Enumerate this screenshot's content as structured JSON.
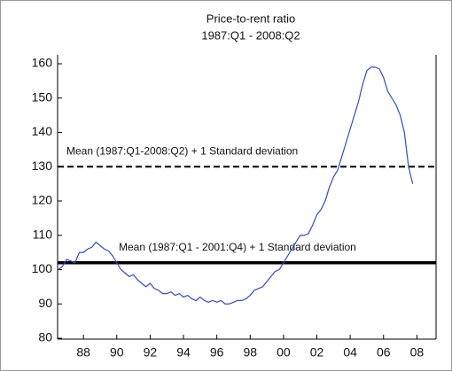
{
  "chart_data": {
    "type": "line",
    "title": "Price-to-rent ratio",
    "subtitle": "1987:Q1 - 2008:Q2",
    "x": [
      1987,
      1987.25,
      1987.5,
      1987.75,
      1988,
      1988.25,
      1988.5,
      1988.75,
      1989,
      1989.25,
      1989.5,
      1989.75,
      1990,
      1990.25,
      1990.5,
      1990.75,
      1991,
      1991.25,
      1991.5,
      1991.75,
      1992,
      1992.25,
      1992.5,
      1992.75,
      1993,
      1993.25,
      1993.5,
      1993.75,
      1994,
      1994.25,
      1994.5,
      1994.75,
      1995,
      1995.25,
      1995.5,
      1995.75,
      1996,
      1996.25,
      1996.5,
      1996.75,
      1997,
      1997.25,
      1997.5,
      1997.75,
      1998,
      1998.25,
      1998.5,
      1998.75,
      1999,
      1999.25,
      1999.5,
      1999.75,
      2000,
      2000.25,
      2000.5,
      2000.75,
      2001,
      2001.25,
      2001.5,
      2001.75,
      2002,
      2002.25,
      2002.5,
      2002.75,
      2003,
      2003.25,
      2003.5,
      2003.75,
      2004,
      2004.25,
      2004.5,
      2004.75,
      2005,
      2005.25,
      2005.5,
      2005.75,
      2006,
      2006.25,
      2006.5,
      2006.75,
      2007,
      2007.25,
      2007.5,
      2007.75,
      2008,
      2008.25
    ],
    "series": [
      {
        "color": "#3347d6",
        "values": [
          100,
          101,
          103,
          102.5,
          102,
          105,
          105,
          106,
          106.5,
          108,
          107,
          106,
          105.5,
          104,
          102,
          100,
          99,
          98,
          98.5,
          97,
          96,
          95,
          96,
          94.5,
          94,
          93,
          93,
          93.5,
          92.5,
          93,
          92,
          92.5,
          91.5,
          91,
          92,
          91,
          90.5,
          91,
          90.5,
          91,
          90,
          90,
          90.5,
          91,
          91,
          91.5,
          92.5,
          94,
          94.5,
          95,
          96.5,
          98,
          99.5,
          100,
          102,
          104,
          106,
          108,
          110,
          110,
          110.5,
          113,
          116,
          117.5,
          120,
          124,
          127,
          129,
          133,
          137,
          141,
          145,
          149,
          154,
          158,
          159,
          159,
          158.5,
          156,
          152,
          150,
          148,
          145,
          140,
          130,
          125
        ]
      }
    ],
    "reference_lines": [
      {
        "value": 130,
        "label": "Mean (1987:Q1-2008:Q2) + 1 Standard deviation",
        "style": "dashed"
      },
      {
        "value": 102,
        "label": "Mean (1987:Q1 - 2001:Q4) + 1 Standard deviation",
        "style": "solid"
      }
    ],
    "xlim": [
      1986.95,
      2009.65
    ],
    "xticks": [
      {
        "value": 1988.5,
        "label": "88"
      },
      {
        "value": 1990.5,
        "label": "90"
      },
      {
        "value": 1992.5,
        "label": "92"
      },
      {
        "value": 1994.5,
        "label": "94"
      },
      {
        "value": 1996.5,
        "label": "96"
      },
      {
        "value": 1998.5,
        "label": "98"
      },
      {
        "value": 2000.5,
        "label": "00"
      },
      {
        "value": 2002.5,
        "label": "02"
      },
      {
        "value": 2004.5,
        "label": "04"
      },
      {
        "value": 2006.5,
        "label": "06"
      },
      {
        "value": 2008.5,
        "label": "08"
      }
    ],
    "ylim": [
      80,
      160
    ],
    "yticks": [
      80,
      90,
      100,
      110,
      120,
      130,
      140,
      150,
      160
    ],
    "grid": false
  }
}
